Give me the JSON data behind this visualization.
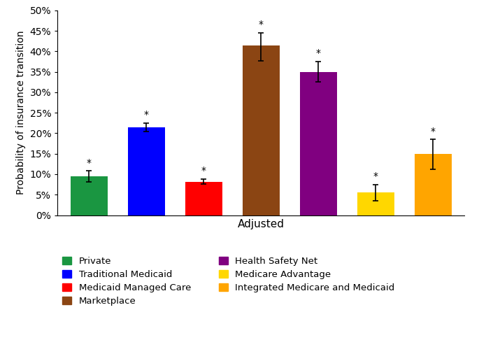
{
  "categories": [
    "Private",
    "Traditional Medicaid",
    "Medicaid Managed Care",
    "Marketplace",
    "Health Safety Net",
    "Medicare Advantage",
    "Integrated Medicare and Medicaid"
  ],
  "values": [
    0.095,
    0.215,
    0.082,
    0.415,
    0.35,
    0.055,
    0.15
  ],
  "errors_upper": [
    0.013,
    0.01,
    0.006,
    0.03,
    0.025,
    0.02,
    0.035
  ],
  "errors_lower": [
    0.013,
    0.01,
    0.006,
    0.038,
    0.025,
    0.02,
    0.038
  ],
  "colors": [
    "#1a9641",
    "#0000ff",
    "#ff0000",
    "#8B4513",
    "#800080",
    "#FFD700",
    "#FFA500"
  ],
  "xlabel": "Adjusted",
  "ylabel": "Probability of insurance transition",
  "ylim": [
    0,
    0.5
  ],
  "yticks": [
    0.0,
    0.05,
    0.1,
    0.15,
    0.2,
    0.25,
    0.3,
    0.35,
    0.4,
    0.45,
    0.5
  ],
  "ytick_labels": [
    "0%",
    "5%",
    "10%",
    "15%",
    "20%",
    "25%",
    "30%",
    "35%",
    "40%",
    "45%",
    "50%"
  ],
  "legend_order": [
    {
      "label": "Private",
      "color": "#1a9641"
    },
    {
      "label": "Traditional Medicaid",
      "color": "#0000ff"
    },
    {
      "label": "Medicaid Managed Care",
      "color": "#ff0000"
    },
    {
      "label": "Marketplace",
      "color": "#8B4513"
    },
    {
      "label": "Health Safety Net",
      "color": "#800080"
    },
    {
      "label": "Medicare Advantage",
      "color": "#FFD700"
    },
    {
      "label": "Integrated Medicare and Medicaid",
      "color": "#FFA500"
    }
  ],
  "bar_width": 0.65,
  "figsize": [
    6.85,
    4.96
  ],
  "dpi": 100
}
